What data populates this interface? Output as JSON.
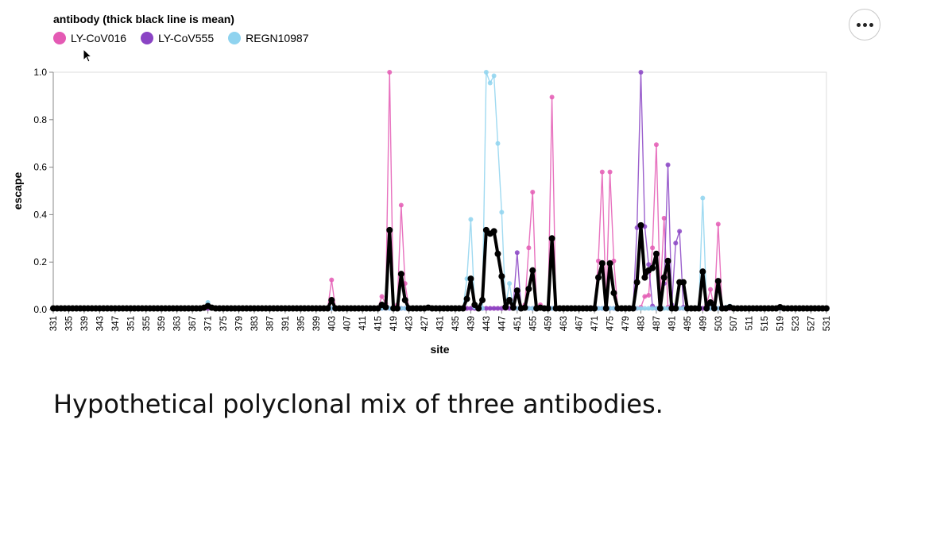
{
  "legend": {
    "title": "antibody (thick black line is mean)",
    "items": [
      {
        "label": "LY-CoV016",
        "color": "#e45ab4"
      },
      {
        "label": "LY-CoV555",
        "color": "#8a44c4"
      },
      {
        "label": "REGN10987",
        "color": "#8fd3ef"
      }
    ]
  },
  "menu": {
    "icon": "more-horizontal-icon"
  },
  "caption": "Hypothetical polyclonal mix of three antibodies.",
  "chart_data": {
    "type": "line",
    "xlabel": "site",
    "ylabel": "escape",
    "x_range": [
      331,
      531
    ],
    "ylim": [
      0,
      1
    ],
    "y_ticks": [
      "0.0",
      "0.2",
      "0.4",
      "0.6",
      "0.8",
      "1.0"
    ],
    "x_ticks": [
      331,
      335,
      339,
      343,
      347,
      351,
      355,
      359,
      363,
      367,
      371,
      375,
      379,
      383,
      387,
      391,
      395,
      399,
      403,
      407,
      411,
      415,
      419,
      423,
      427,
      431,
      435,
      439,
      443,
      447,
      451,
      455,
      459,
      463,
      467,
      471,
      475,
      479,
      483,
      487,
      491,
      495,
      499,
      503,
      507,
      511,
      515,
      519,
      523,
      527,
      531
    ],
    "grid": false,
    "legend_position": "top-left",
    "baseline": 0.005,
    "series": [
      {
        "name": "LY-CoV016",
        "color": "#e45ab4",
        "points": [
          {
            "site": 403,
            "escape": 0.125
          },
          {
            "site": 416,
            "escape": 0.055
          },
          {
            "site": 417,
            "escape": 0.025
          },
          {
            "site": 418,
            "escape": 1.0
          },
          {
            "site": 419,
            "escape": 0.01
          },
          {
            "site": 420,
            "escape": 0.02
          },
          {
            "site": 421,
            "escape": 0.44
          },
          {
            "site": 422,
            "escape": 0.11
          },
          {
            "site": 453,
            "escape": 0.02
          },
          {
            "site": 454,
            "escape": 0.26
          },
          {
            "site": 455,
            "escape": 0.495
          },
          {
            "site": 456,
            "escape": 0.01
          },
          {
            "site": 457,
            "escape": 0.02
          },
          {
            "site": 459,
            "escape": 0.01
          },
          {
            "site": 460,
            "escape": 0.895
          },
          {
            "site": 471,
            "escape": 0.01
          },
          {
            "site": 472,
            "escape": 0.205
          },
          {
            "site": 473,
            "escape": 0.58
          },
          {
            "site": 474,
            "escape": 0.01
          },
          {
            "site": 475,
            "escape": 0.58
          },
          {
            "site": 476,
            "escape": 0.205
          },
          {
            "site": 483,
            "escape": 0.01
          },
          {
            "site": 484,
            "escape": 0.055
          },
          {
            "site": 485,
            "escape": 0.06
          },
          {
            "site": 486,
            "escape": 0.26
          },
          {
            "site": 487,
            "escape": 0.695
          },
          {
            "site": 488,
            "escape": 0.05
          },
          {
            "site": 489,
            "escape": 0.385
          },
          {
            "site": 490,
            "escape": 0.01
          },
          {
            "site": 500,
            "escape": 0.02
          },
          {
            "site": 501,
            "escape": 0.085
          },
          {
            "site": 503,
            "escape": 0.36
          },
          {
            "site": 504,
            "escape": 0.01
          }
        ]
      },
      {
        "name": "LY-CoV555",
        "color": "#8a44c4",
        "points": [
          {
            "site": 450,
            "escape": 0.02
          },
          {
            "site": 451,
            "escape": 0.24
          },
          {
            "site": 452,
            "escape": 0.01
          },
          {
            "site": 482,
            "escape": 0.345
          },
          {
            "site": 483,
            "escape": 1.0
          },
          {
            "site": 484,
            "escape": 0.35
          },
          {
            "site": 485,
            "escape": 0.19
          },
          {
            "site": 486,
            "escape": 0.015
          },
          {
            "site": 489,
            "escape": 0.11
          },
          {
            "site": 490,
            "escape": 0.61
          },
          {
            "site": 491,
            "escape": 0.02
          },
          {
            "site": 492,
            "escape": 0.28
          },
          {
            "site": 493,
            "escape": 0.33
          },
          {
            "site": 494,
            "escape": 0.01
          }
        ]
      },
      {
        "name": "REGN10987",
        "color": "#8fd3ef",
        "points": [
          {
            "site": 370,
            "escape": 0.01
          },
          {
            "site": 371,
            "escape": 0.03
          },
          {
            "site": 372,
            "escape": 0.01
          },
          {
            "site": 438,
            "escape": 0.13
          },
          {
            "site": 439,
            "escape": 0.38
          },
          {
            "site": 440,
            "escape": 0.01
          },
          {
            "site": 441,
            "escape": 0.005
          },
          {
            "site": 443,
            "escape": 1.0
          },
          {
            "site": 444,
            "escape": 0.955
          },
          {
            "site": 445,
            "escape": 0.985
          },
          {
            "site": 446,
            "escape": 0.7
          },
          {
            "site": 447,
            "escape": 0.41
          },
          {
            "site": 448,
            "escape": 0.01
          },
          {
            "site": 449,
            "escape": 0.11
          },
          {
            "site": 450,
            "escape": 0.01
          },
          {
            "site": 498,
            "escape": 0.01
          },
          {
            "site": 499,
            "escape": 0.47
          },
          {
            "site": 500,
            "escape": 0.01
          },
          {
            "site": 505,
            "escape": 0.01
          },
          {
            "site": 506,
            "escape": 0.015
          }
        ]
      },
      {
        "name": "mean",
        "color": "#000000",
        "points": [
          {
            "site": 370,
            "escape": 0.008
          },
          {
            "site": 371,
            "escape": 0.015
          },
          {
            "site": 372,
            "escape": 0.008
          },
          {
            "site": 402,
            "escape": 0.005
          },
          {
            "site": 403,
            "escape": 0.04
          },
          {
            "site": 404,
            "escape": 0.005
          },
          {
            "site": 415,
            "escape": 0.005
          },
          {
            "site": 416,
            "escape": 0.02
          },
          {
            "site": 417,
            "escape": 0.01
          },
          {
            "site": 418,
            "escape": 0.335
          },
          {
            "site": 419,
            "escape": 0.005
          },
          {
            "site": 420,
            "escape": 0.005
          },
          {
            "site": 421,
            "escape": 0.15
          },
          {
            "site": 422,
            "escape": 0.04
          },
          {
            "site": 423,
            "escape": 0.005
          },
          {
            "site": 427,
            "escape": 0.005
          },
          {
            "site": 428,
            "escape": 0.008
          },
          {
            "site": 437,
            "escape": 0.005
          },
          {
            "site": 438,
            "escape": 0.045
          },
          {
            "site": 439,
            "escape": 0.13
          },
          {
            "site": 440,
            "escape": 0.02
          },
          {
            "site": 441,
            "escape": 0.005
          },
          {
            "site": 442,
            "escape": 0.04
          },
          {
            "site": 443,
            "escape": 0.335
          },
          {
            "site": 444,
            "escape": 0.32
          },
          {
            "site": 445,
            "escape": 0.33
          },
          {
            "site": 446,
            "escape": 0.235
          },
          {
            "site": 447,
            "escape": 0.14
          },
          {
            "site": 448,
            "escape": 0.01
          },
          {
            "site": 449,
            "escape": 0.04
          },
          {
            "site": 450,
            "escape": 0.008
          },
          {
            "site": 451,
            "escape": 0.08
          },
          {
            "site": 452,
            "escape": 0.005
          },
          {
            "site": 453,
            "escape": 0.008
          },
          {
            "site": 454,
            "escape": 0.087
          },
          {
            "site": 455,
            "escape": 0.165
          },
          {
            "site": 456,
            "escape": 0.005
          },
          {
            "site": 457,
            "escape": 0.008
          },
          {
            "site": 459,
            "escape": 0.005
          },
          {
            "site": 460,
            "escape": 0.3
          },
          {
            "site": 461,
            "escape": 0.005
          },
          {
            "site": 471,
            "escape": 0.005
          },
          {
            "site": 472,
            "escape": 0.135
          },
          {
            "site": 473,
            "escape": 0.195
          },
          {
            "site": 474,
            "escape": 0.005
          },
          {
            "site": 475,
            "escape": 0.195
          },
          {
            "site": 476,
            "escape": 0.07
          },
          {
            "site": 477,
            "escape": 0.005
          },
          {
            "site": 481,
            "escape": 0.005
          },
          {
            "site": 482,
            "escape": 0.115
          },
          {
            "site": 483,
            "escape": 0.355
          },
          {
            "site": 484,
            "escape": 0.135
          },
          {
            "site": 485,
            "escape": 0.165
          },
          {
            "site": 486,
            "escape": 0.175
          },
          {
            "site": 487,
            "escape": 0.235
          },
          {
            "site": 488,
            "escape": 0.005
          },
          {
            "site": 489,
            "escape": 0.135
          },
          {
            "site": 490,
            "escape": 0.205
          },
          {
            "site": 491,
            "escape": 0.005
          },
          {
            "site": 492,
            "escape": 0.005
          },
          {
            "site": 493,
            "escape": 0.115
          },
          {
            "site": 494,
            "escape": 0.115
          },
          {
            "site": 495,
            "escape": 0.005
          },
          {
            "site": 498,
            "escape": 0.005
          },
          {
            "site": 499,
            "escape": 0.16
          },
          {
            "site": 500,
            "escape": 0.005
          },
          {
            "site": 501,
            "escape": 0.03
          },
          {
            "site": 502,
            "escape": 0.005
          },
          {
            "site": 503,
            "escape": 0.12
          },
          {
            "site": 504,
            "escape": 0.005
          },
          {
            "site": 505,
            "escape": 0.005
          },
          {
            "site": 506,
            "escape": 0.01
          },
          {
            "site": 507,
            "escape": 0.005
          },
          {
            "site": 518,
            "escape": 0.005
          },
          {
            "site": 519,
            "escape": 0.01
          },
          {
            "site": 520,
            "escape": 0.005
          }
        ]
      }
    ]
  }
}
